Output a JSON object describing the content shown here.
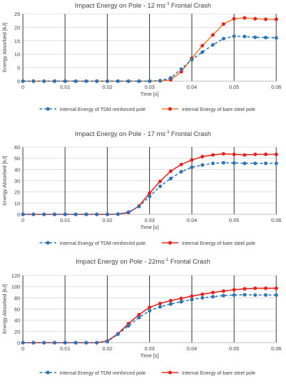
{
  "chart_data": [
    {
      "type": "line",
      "title": "Impact Energy on Pole - 12 ms",
      "title_sup": "-1",
      "title_suffix": " Frontal Crash",
      "xlabel": "Time [s]",
      "ylabel": "Energy Absorbed [kJ]",
      "xlim": [
        0,
        0.06
      ],
      "ylim": [
        0,
        25
      ],
      "xticks": [
        0,
        0.01,
        0.02,
        0.03,
        0.04,
        0.05,
        0.06
      ],
      "yticks": [
        0,
        5,
        10,
        15,
        20,
        25
      ],
      "grid": true,
      "legend_position": "bottom",
      "series": [
        {
          "name": "Internal Energy of TDM reinforced pole",
          "color": "#2e75b6",
          "dashed": true,
          "x": [
            0,
            0.0025,
            0.005,
            0.0075,
            0.01,
            0.0125,
            0.015,
            0.0175,
            0.02,
            0.0225,
            0.025,
            0.0275,
            0.03,
            0.0325,
            0.035,
            0.0375,
            0.04,
            0.0425,
            0.045,
            0.0475,
            0.05,
            0.0525,
            0.055,
            0.0575,
            0.06
          ],
          "y": [
            0,
            0,
            0,
            0,
            0,
            0,
            0,
            0,
            0,
            0,
            0,
            0,
            0,
            0.2,
            1.2,
            4.5,
            8,
            10.8,
            13.5,
            15.8,
            16.7,
            16.6,
            16.3,
            16.2,
            16.1
          ]
        },
        {
          "name": "Internal Energy of bare steel pole",
          "color": "#e8231e",
          "line_color": "#ed7d31",
          "dashed": false,
          "x": [
            0,
            0.0025,
            0.005,
            0.0075,
            0.01,
            0.0125,
            0.015,
            0.0175,
            0.02,
            0.0225,
            0.025,
            0.0275,
            0.03,
            0.0325,
            0.035,
            0.0375,
            0.04,
            0.0425,
            0.045,
            0.0475,
            0.05,
            0.0525,
            0.055,
            0.0575,
            0.06
          ],
          "y": [
            0,
            0,
            0,
            0,
            0,
            0,
            0,
            0,
            0,
            0,
            0,
            0,
            0,
            0.1,
            0.5,
            3.5,
            8.5,
            13.2,
            17.2,
            21.2,
            23.2,
            23.5,
            23.2,
            23,
            23
          ]
        }
      ]
    },
    {
      "type": "line",
      "title": "Impact Energy on Pole - 17 ms",
      "title_sup": "-1",
      "title_suffix": " Frontal Crash",
      "xlabel": "Time [s]",
      "ylabel": "Energy Absorbed [kJ]",
      "xlim": [
        0,
        0.06
      ],
      "ylim": [
        0,
        60
      ],
      "xticks": [
        0,
        0.01,
        0.02,
        0.03,
        0.04,
        0.05,
        0.06
      ],
      "yticks": [
        0,
        10,
        20,
        30,
        40,
        50,
        60
      ],
      "grid": true,
      "legend_position": "bottom",
      "series": [
        {
          "name": "Internal Energy of TDM reinforced pole",
          "color": "#2e75b6",
          "dashed": true,
          "x": [
            0,
            0.0025,
            0.005,
            0.0075,
            0.01,
            0.0125,
            0.015,
            0.0175,
            0.02,
            0.0225,
            0.025,
            0.0275,
            0.03,
            0.0325,
            0.035,
            0.0375,
            0.04,
            0.0425,
            0.045,
            0.0475,
            0.05,
            0.0525,
            0.055,
            0.0575,
            0.06
          ],
          "y": [
            0,
            0,
            0,
            0,
            0,
            0,
            0,
            0,
            0,
            0.2,
            2,
            7,
            16,
            25,
            32,
            38,
            42,
            44,
            45.5,
            46,
            45.8,
            45.5,
            45.5,
            45.5,
            45.5
          ]
        },
        {
          "name": "Internal Energy of bare steel pole",
          "color": "#e8231e",
          "dashed": false,
          "x": [
            0,
            0.0025,
            0.005,
            0.0075,
            0.01,
            0.0125,
            0.015,
            0.0175,
            0.02,
            0.0225,
            0.025,
            0.0275,
            0.03,
            0.0325,
            0.035,
            0.0375,
            0.04,
            0.0425,
            0.045,
            0.0475,
            0.05,
            0.0525,
            0.055,
            0.0575,
            0.06
          ],
          "y": [
            0,
            0,
            0,
            0,
            0,
            0,
            0,
            0,
            0,
            0.2,
            1.5,
            7.5,
            19,
            29.5,
            38.5,
            44.5,
            48.5,
            51.5,
            53,
            54,
            53.5,
            53,
            53.5,
            53.5,
            53.5
          ]
        }
      ]
    },
    {
      "type": "line",
      "title": "Impact Energy on Pole - 22ms",
      "title_sup": "-1",
      "title_suffix": " Frontal Crash",
      "xlabel": "Time [s]",
      "ylabel": "Energy Absorbed [kJ]",
      "xlim": [
        0,
        0.06
      ],
      "ylim": [
        0,
        120
      ],
      "xticks": [
        0,
        0.01,
        0.02,
        0.03,
        0.04,
        0.05,
        0.06
      ],
      "yticks": [
        0,
        20,
        40,
        60,
        80,
        100,
        120
      ],
      "grid": true,
      "legend_position": "bottom",
      "series": [
        {
          "name": "Internal Energy of TDM reinforced pole",
          "color": "#2e75b6",
          "dashed": true,
          "x": [
            0,
            0.0025,
            0.005,
            0.0075,
            0.01,
            0.0125,
            0.015,
            0.0175,
            0.02,
            0.0225,
            0.025,
            0.0275,
            0.03,
            0.0325,
            0.035,
            0.0375,
            0.04,
            0.0425,
            0.045,
            0.0475,
            0.05,
            0.0525,
            0.055,
            0.0575,
            0.06
          ],
          "y": [
            0,
            0,
            0,
            0,
            0,
            0,
            0,
            0,
            2,
            15,
            30,
            45,
            57,
            64,
            69,
            73,
            77,
            80,
            82,
            84,
            85,
            85.5,
            85,
            85,
            85
          ]
        },
        {
          "name": "Internal Energy of bare steel pole",
          "color": "#e8231e",
          "dashed": false,
          "x": [
            0,
            0.0025,
            0.005,
            0.0075,
            0.01,
            0.0125,
            0.015,
            0.0175,
            0.02,
            0.0225,
            0.025,
            0.0275,
            0.03,
            0.0325,
            0.035,
            0.0375,
            0.04,
            0.0425,
            0.045,
            0.0475,
            0.05,
            0.0525,
            0.055,
            0.0575,
            0.06
          ],
          "y": [
            0,
            0,
            0,
            0,
            0,
            0,
            0,
            0,
            3,
            16,
            34,
            50,
            63,
            70,
            75,
            79,
            83,
            86.5,
            89.5,
            92,
            94.5,
            96,
            97,
            97,
            97
          ]
        }
      ]
    }
  ]
}
